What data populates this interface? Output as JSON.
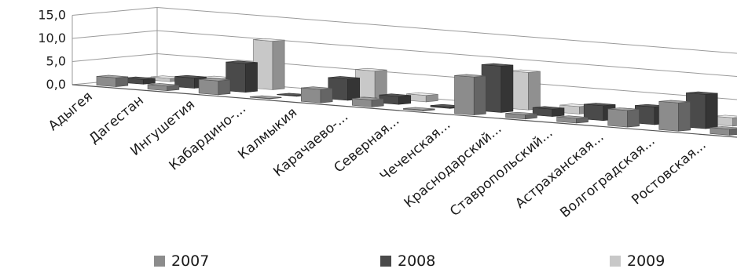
{
  "chart_data": {
    "type": "bar",
    "variant": "3d-clustered-column",
    "title": "",
    "xlabel": "",
    "ylabel": "",
    "ylim": [
      0,
      15
    ],
    "y_ticks": [
      "15,0",
      "10,0",
      "5,0",
      "0,0"
    ],
    "grid": true,
    "legend_position": "bottom",
    "categories": [
      "Адыгея",
      "Дагестан",
      "Ингушетия",
      "Кабардино-...",
      "Калмыкия",
      "Карачаево-...",
      "Северная...",
      "Чеченская...",
      "Краснодарский...",
      "Ставропольский...",
      "Астраханская...",
      "Волгоградская...",
      "Ростовская..."
    ],
    "series": [
      {
        "name": "2007",
        "color": "#8c8c8c",
        "values": [
          1.9,
          1.0,
          3.0,
          0.1,
          2.9,
          1.5,
          0.2,
          8.2,
          0.9,
          1.0,
          3.6,
          6.1,
          1.3
        ]
      },
      {
        "name": "2008",
        "color": "#4a4a4a",
        "values": [
          1.0,
          2.2,
          6.2,
          0.1,
          4.6,
          1.7,
          0.3,
          10.0,
          1.6,
          3.2,
          3.8,
          7.4,
          1.2
        ]
      },
      {
        "name": "2009",
        "color": "#c8c8c8",
        "values": [
          0.7,
          1.5,
          10.5,
          0.2,
          5.8,
          1.4,
          0.3,
          8.1,
          1.6,
          1.6,
          2.1,
          1.8,
          1.2
        ]
      }
    ]
  }
}
